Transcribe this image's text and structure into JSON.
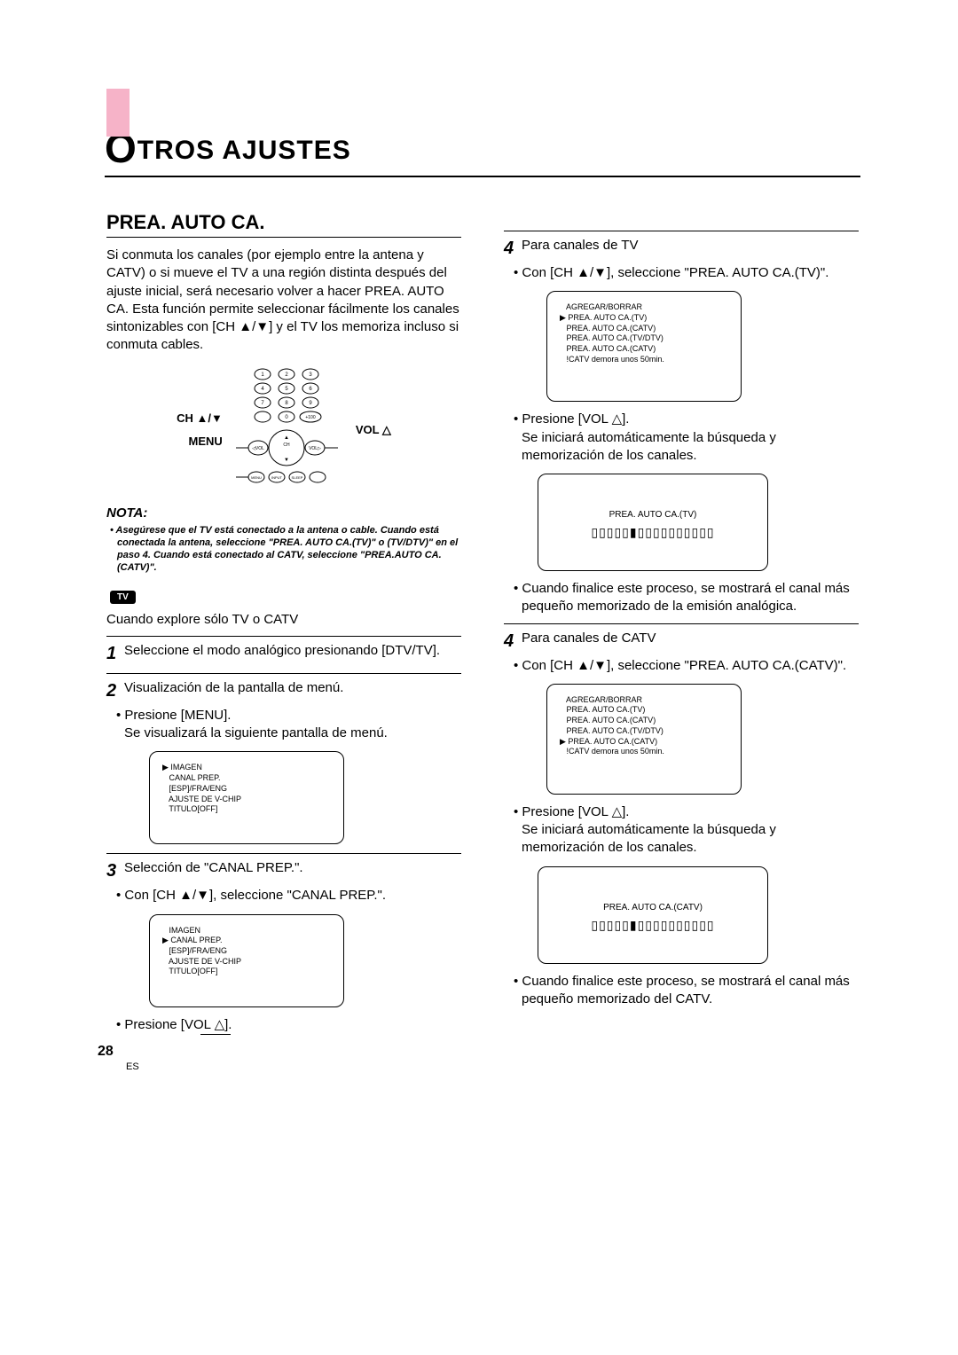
{
  "title": "TROS AJUSTES",
  "big_letter": "O",
  "section": "PREA. AUTO CA.",
  "intro": "Si conmuta los canales (por ejemplo entre la antena y CATV) o si mueve el TV a una región distinta después del ajuste inicial, será necesario volver a hacer PREA. AUTO CA. Esta función permite seleccionar fácilmente los canales sintonizables con [CH ▲/▼] y el TV los memoriza incluso si conmuta cables.",
  "labels": {
    "ch": "CH ▲/▼",
    "menu": "MENU",
    "vol": "VOL △"
  },
  "nota_head": "NOTA:",
  "nota_body": "• Asegúrese que el TV está conectado a la antena o cable. Cuando está conectada la antena, seleccione \"PREA. AUTO CA.(TV)\" o (TV/DTV)\" en el paso 4. Cuando está conectado al CATV, seleccione \"PREA.AUTO CA.(CATV)\".",
  "tv_badge": "TV",
  "explore": "Cuando explore sólo TV o CATV",
  "step1": "Seleccione el modo analógico presionando [DTV/TV].",
  "step2": "Visualización de la pantalla de menú.",
  "step2_b1": "Presione [MENU].",
  "step2_b1_after": "Se visualizará la siguiente pantalla de menú.",
  "screen1": [
    "▶ IMAGEN",
    "   CANAL PREP.",
    "   [ESP]/FRA/ENG",
    "   AJUSTE DE V-CHIP",
    "   TITULO[OFF]"
  ],
  "step3": "Selección de \"CANAL PREP.\".",
  "step3_b1": "Con [CH ▲/▼], seleccione \"CANAL PREP.\".",
  "screen2": [
    "   IMAGEN",
    "▶ CANAL PREP.",
    "   [ESP]/FRA/ENG",
    "   AJUSTE DE V-CHIP",
    "   TITULO[OFF]"
  ],
  "step3_b2": "Presione [VOL △].",
  "r4a": "Para canales de TV",
  "r4a_b1": "Con [CH ▲/▼], seleccione \"PREA. AUTO CA.(TV)\".",
  "screen3": [
    "   AGREGAR/BORRAR",
    "▶ PREA. AUTO CA.(TV)",
    "   PREA. AUTO CA.(CATV)",
    "   PREA. AUTO CA.(TV/DTV)",
    "   PREA. AUTO CA.(CATV)",
    "   !CATV demora unos 50min."
  ],
  "r4a_b2": "Presione [VOL △].",
  "r4a_b2_after": "Se iniciará automáticamente la búsqueda y memorización de los canales.",
  "prog1_title": "PREA. AUTO CA.(TV)",
  "r4a_b3": "Cuando finalice este proceso, se mostrará el canal más pequeño memorizado de la emisión analógica.",
  "r4b": "Para canales de CATV",
  "r4b_b1": "Con [CH ▲/▼], seleccione \"PREA. AUTO CA.(CATV)\".",
  "screen4": [
    "   AGREGAR/BORRAR",
    "   PREA. AUTO CA.(TV)",
    "   PREA. AUTO CA.(CATV)",
    "   PREA. AUTO CA.(TV/DTV)",
    "▶ PREA. AUTO CA.(CATV)",
    "   !CATV demora unos 50min."
  ],
  "r4b_b2": "Presione [VOL △].",
  "r4b_b2_after": "Se iniciará automáticamente la búsqueda y memorización de los canales.",
  "prog2_title": "PREA. AUTO CA.(CATV)",
  "r4b_b3": "Cuando finalice este proceso, se mostrará el canal más pequeño memorizado del CATV.",
  "page_num": "28",
  "page_es": "ES"
}
